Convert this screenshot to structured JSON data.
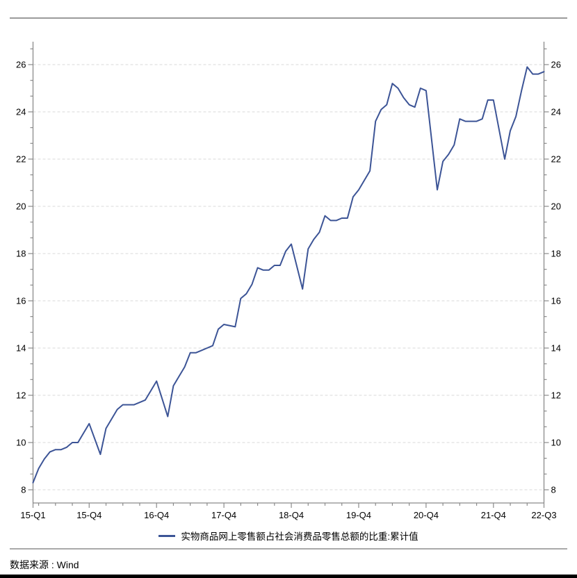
{
  "chart_data": {
    "type": "line",
    "title": "",
    "legend_position": "bottom-center",
    "grid": "horizontal-dashed",
    "colors": {
      "line": "#3c5496",
      "axis": "#8a8a8a",
      "grid": "#d9d9d9",
      "text": "#000000"
    },
    "y_axis": {
      "min": 8,
      "max": 26,
      "tick_step": 2,
      "sides": "both",
      "tick_labels": [
        "8",
        "10",
        "12",
        "14",
        "16",
        "18",
        "20",
        "22",
        "24",
        "26"
      ]
    },
    "x_axis": {
      "start_month": "2015-02",
      "end_month": "2022-09",
      "minor_tick_rule": "calendar-quarter-ends",
      "major_ticks": [
        {
          "label": "15-Q1",
          "month": "2015-02"
        },
        {
          "label": "15-Q4",
          "month": "2015-12"
        },
        {
          "label": "16-Q4",
          "month": "2016-12"
        },
        {
          "label": "17-Q4",
          "month": "2017-12"
        },
        {
          "label": "18-Q4",
          "month": "2018-12"
        },
        {
          "label": "19-Q4",
          "month": "2019-12"
        },
        {
          "label": "20-Q4",
          "month": "2020-12"
        },
        {
          "label": "21-Q4",
          "month": "2021-12"
        },
        {
          "label": "22-Q3",
          "month": "2022-09"
        }
      ]
    },
    "series": [
      {
        "name": "实物商品网上零售额占社会消费品零售总额的比重:累计值",
        "color": "#3c5496",
        "points": [
          [
            "2015-02",
            8.3
          ],
          [
            "2015-03",
            8.9
          ],
          [
            "2015-04",
            9.3
          ],
          [
            "2015-05",
            9.6
          ],
          [
            "2015-06",
            9.7
          ],
          [
            "2015-07",
            9.7
          ],
          [
            "2015-08",
            9.8
          ],
          [
            "2015-09",
            10.0
          ],
          [
            "2015-10",
            10.0
          ],
          [
            "2015-11",
            10.4
          ],
          [
            "2015-12",
            10.8
          ],
          [
            "2016-02",
            9.5
          ],
          [
            "2016-03",
            10.6
          ],
          [
            "2016-04",
            11.0
          ],
          [
            "2016-05",
            11.4
          ],
          [
            "2016-06",
            11.6
          ],
          [
            "2016-07",
            11.6
          ],
          [
            "2016-08",
            11.6
          ],
          [
            "2016-09",
            11.7
          ],
          [
            "2016-10",
            11.8
          ],
          [
            "2016-11",
            12.2
          ],
          [
            "2016-12",
            12.6
          ],
          [
            "2017-02",
            11.1
          ],
          [
            "2017-03",
            12.4
          ],
          [
            "2017-04",
            12.8
          ],
          [
            "2017-05",
            13.2
          ],
          [
            "2017-06",
            13.8
          ],
          [
            "2017-07",
            13.8
          ],
          [
            "2017-08",
            13.9
          ],
          [
            "2017-09",
            14.0
          ],
          [
            "2017-10",
            14.1
          ],
          [
            "2017-11",
            14.8
          ],
          [
            "2017-12",
            15.0
          ],
          [
            "2018-02",
            14.9
          ],
          [
            "2018-03",
            16.1
          ],
          [
            "2018-04",
            16.3
          ],
          [
            "2018-05",
            16.7
          ],
          [
            "2018-06",
            17.4
          ],
          [
            "2018-07",
            17.3
          ],
          [
            "2018-08",
            17.3
          ],
          [
            "2018-09",
            17.5
          ],
          [
            "2018-10",
            17.5
          ],
          [
            "2018-11",
            18.1
          ],
          [
            "2018-12",
            18.4
          ],
          [
            "2019-02",
            16.5
          ],
          [
            "2019-03",
            18.2
          ],
          [
            "2019-04",
            18.6
          ],
          [
            "2019-05",
            18.9
          ],
          [
            "2019-06",
            19.6
          ],
          [
            "2019-07",
            19.4
          ],
          [
            "2019-08",
            19.4
          ],
          [
            "2019-09",
            19.5
          ],
          [
            "2019-10",
            19.5
          ],
          [
            "2019-11",
            20.4
          ],
          [
            "2019-12",
            20.7
          ],
          [
            "2020-02",
            21.5
          ],
          [
            "2020-03",
            23.6
          ],
          [
            "2020-04",
            24.1
          ],
          [
            "2020-05",
            24.3
          ],
          [
            "2020-06",
            25.2
          ],
          [
            "2020-07",
            25.0
          ],
          [
            "2020-08",
            24.6
          ],
          [
            "2020-09",
            24.3
          ],
          [
            "2020-10",
            24.2
          ],
          [
            "2020-11",
            25.0
          ],
          [
            "2020-12",
            24.9
          ],
          [
            "2021-02",
            20.7
          ],
          [
            "2021-03",
            21.9
          ],
          [
            "2021-04",
            22.2
          ],
          [
            "2021-05",
            22.6
          ],
          [
            "2021-06",
            23.7
          ],
          [
            "2021-07",
            23.6
          ],
          [
            "2021-08",
            23.6
          ],
          [
            "2021-09",
            23.6
          ],
          [
            "2021-10",
            23.7
          ],
          [
            "2021-11",
            24.5
          ],
          [
            "2021-12",
            24.5
          ],
          [
            "2022-02",
            22.0
          ],
          [
            "2022-03",
            23.2
          ],
          [
            "2022-04",
            23.8
          ],
          [
            "2022-05",
            24.9
          ],
          [
            "2022-06",
            25.9
          ],
          [
            "2022-07",
            25.6
          ],
          [
            "2022-08",
            25.6
          ],
          [
            "2022-09",
            25.7
          ]
        ]
      }
    ]
  },
  "legend": {
    "label": "实物商品网上零售额占社会消费品零售总额的比重:累计值"
  },
  "footer": {
    "source": "数据来源 : Wind"
  }
}
